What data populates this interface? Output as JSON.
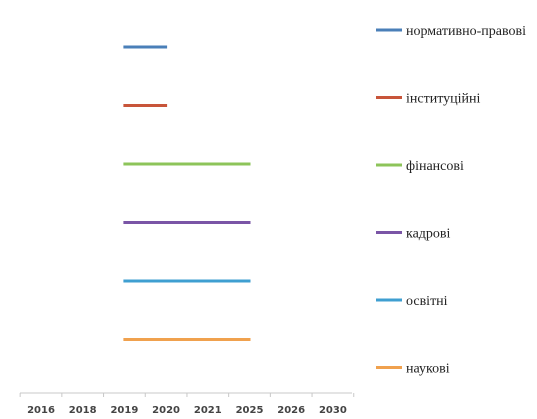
{
  "chart_data": {
    "type": "gantt",
    "x_categories": [
      "2016",
      "2018",
      "2019",
      "2020",
      "2021",
      "2025",
      "2026",
      "2030"
    ],
    "series": [
      {
        "name": "нормативно-правові",
        "start": "2019",
        "end": "2020",
        "color": "#4a7fb8"
      },
      {
        "name": "інституційні",
        "start": "2019",
        "end": "2020",
        "color": "#c8553a"
      },
      {
        "name": "фінансові",
        "start": "2019",
        "end": "2025",
        "color": "#8dc45a"
      },
      {
        "name": "кадрові",
        "start": "2019",
        "end": "2025",
        "color": "#7a55a6"
      },
      {
        "name": "освітні",
        "start": "2019",
        "end": "2025",
        "color": "#3f9fd1"
      },
      {
        "name": "наукові",
        "start": "2019",
        "end": "2025",
        "color": "#f0a14e"
      }
    ],
    "legend_position": "right",
    "grid": false
  }
}
